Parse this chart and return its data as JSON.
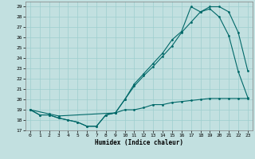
{
  "xlabel": "Humidex (Indice chaleur)",
  "bg_color": "#c2e0e0",
  "grid_color": "#9ecece",
  "line_color": "#006868",
  "xlim": [
    -0.5,
    23.5
  ],
  "ylim": [
    17,
    29.5
  ],
  "xticks": [
    0,
    1,
    2,
    3,
    4,
    5,
    6,
    7,
    8,
    9,
    10,
    11,
    12,
    13,
    14,
    15,
    16,
    17,
    18,
    19,
    20,
    21,
    22,
    23
  ],
  "yticks": [
    17,
    18,
    19,
    20,
    21,
    22,
    23,
    24,
    25,
    26,
    27,
    28,
    29
  ],
  "line1_x": [
    0,
    1,
    2,
    3,
    4,
    5,
    6,
    7,
    8,
    9,
    10,
    11,
    12,
    13,
    14,
    15,
    16,
    17,
    18,
    19,
    20,
    21,
    22,
    23
  ],
  "line1_y": [
    19,
    18.5,
    18.5,
    18.2,
    18.0,
    17.8,
    17.4,
    17.4,
    18.5,
    18.7,
    19.0,
    19.0,
    19.2,
    19.5,
    19.5,
    19.7,
    19.8,
    19.9,
    20.0,
    20.1,
    20.1,
    20.1,
    20.1,
    20.1
  ],
  "line2_x": [
    0,
    1,
    2,
    3,
    4,
    5,
    6,
    7,
    8,
    9,
    10,
    11,
    12,
    13,
    14,
    15,
    16,
    17,
    18,
    19,
    20,
    21,
    22,
    23
  ],
  "line2_y": [
    19,
    18.5,
    18.5,
    18.2,
    18.0,
    17.8,
    17.4,
    17.4,
    18.5,
    18.7,
    20.0,
    21.3,
    22.3,
    23.2,
    24.2,
    25.2,
    26.5,
    27.5,
    28.5,
    28.8,
    28.0,
    26.2,
    22.7,
    20.2
  ],
  "line3_x": [
    0,
    2,
    3,
    9,
    10,
    11,
    12,
    13,
    14,
    15,
    16,
    17,
    18,
    19,
    20,
    21,
    22,
    23
  ],
  "line3_y": [
    19,
    18.6,
    18.4,
    18.7,
    20.0,
    21.5,
    22.5,
    23.5,
    24.5,
    25.8,
    26.6,
    29.0,
    28.5,
    29.0,
    29.0,
    28.5,
    26.5,
    22.8
  ]
}
